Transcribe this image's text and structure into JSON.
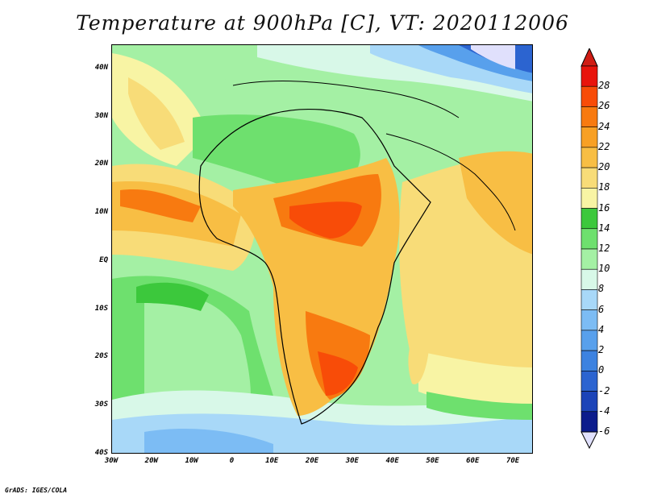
{
  "title": "Temperature at 900hPa [C], VT: 2020112006",
  "credit": "GrADS: IGES/COLA",
  "map": {
    "lon_range": [
      -30,
      75
    ],
    "lat_range": [
      -40,
      45
    ],
    "lon_ticks": [
      {
        "value": -30,
        "label": "30W"
      },
      {
        "value": -20,
        "label": "20W"
      },
      {
        "value": -10,
        "label": "10W"
      },
      {
        "value": 0,
        "label": "0"
      },
      {
        "value": 10,
        "label": "10E"
      },
      {
        "value": 20,
        "label": "20E"
      },
      {
        "value": 30,
        "label": "30E"
      },
      {
        "value": 40,
        "label": "40E"
      },
      {
        "value": 50,
        "label": "50E"
      },
      {
        "value": 60,
        "label": "60E"
      },
      {
        "value": 70,
        "label": "70E"
      }
    ],
    "lat_ticks": [
      {
        "value": 40,
        "label": "40N"
      },
      {
        "value": 30,
        "label": "30N"
      },
      {
        "value": 20,
        "label": "20N"
      },
      {
        "value": 10,
        "label": "10N"
      },
      {
        "value": 0,
        "label": "EQ"
      },
      {
        "value": -10,
        "label": "10S"
      },
      {
        "value": -20,
        "label": "20S"
      },
      {
        "value": -30,
        "label": "30S"
      },
      {
        "value": -40,
        "label": "40S"
      }
    ]
  },
  "colorbar": {
    "levels": [
      "28",
      "26",
      "24",
      "22",
      "20",
      "18",
      "16",
      "14",
      "12",
      "10",
      "8",
      "6",
      "4",
      "2",
      "0",
      "-2",
      "-4",
      "-6"
    ],
    "colors": [
      "#e8140c",
      "#f84c08",
      "#f87a10",
      "#f8a024",
      "#f8be44",
      "#f8dc78",
      "#f8f4a4",
      "#3cc83c",
      "#6ee06e",
      "#a4f0a4",
      "#d8f8e8",
      "#a8d8f8",
      "#7cbcf4",
      "#58a0ec",
      "#3c82e0",
      "#2c64d0",
      "#1c44b8",
      "#0c1c8c"
    ],
    "top_color": "#d01c14",
    "bottom_color": "#e0e0fc"
  }
}
